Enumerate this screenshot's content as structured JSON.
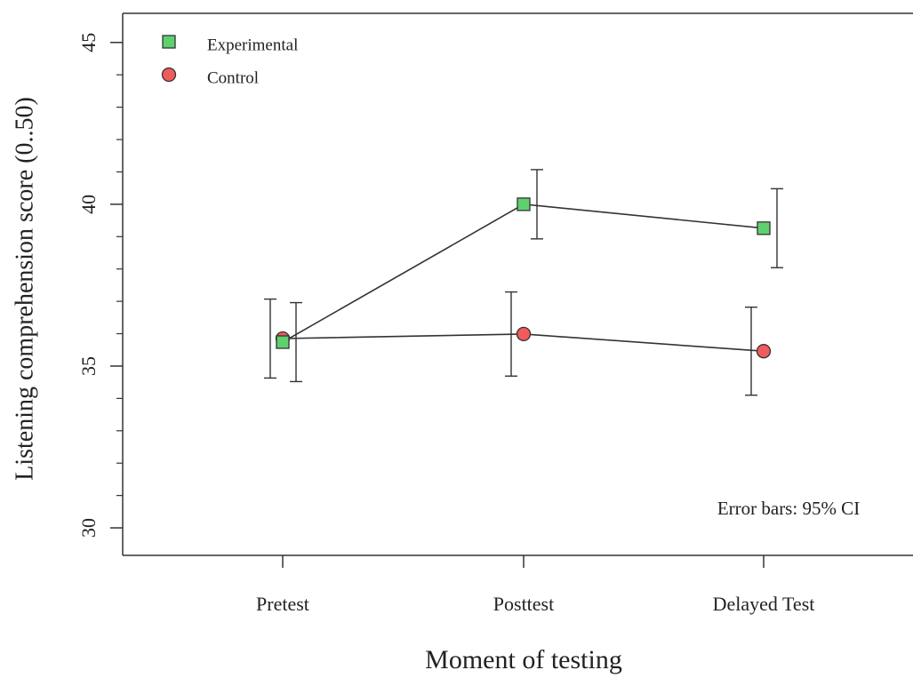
{
  "chart_data": {
    "type": "line",
    "categories": [
      "Pretest",
      "Posttest",
      "Delayed Test"
    ],
    "series": [
      {
        "name": "Experimental",
        "color": "#5fd06e",
        "marker": "square",
        "values": [
          35.74,
          40.0,
          39.26
        ],
        "error": [
          1.22,
          1.07,
          1.22
        ]
      },
      {
        "name": "Control",
        "color": "#f05b5b",
        "marker": "circle",
        "values": [
          35.85,
          35.99,
          35.46
        ],
        "error": [
          1.22,
          1.3,
          1.36
        ]
      }
    ],
    "x_label": "Moment of testing",
    "y_label": "Listening comprehension score (0..50)",
    "annotation": "Error bars: 95% CI",
    "ylim": [
      29.15,
      45.9
    ],
    "yticks": [
      30,
      35,
      40,
      45
    ],
    "y_minor_ticks": [
      31,
      32,
      33,
      34,
      36,
      37,
      38,
      39,
      41,
      42,
      43,
      44
    ],
    "legend": "upper left"
  }
}
